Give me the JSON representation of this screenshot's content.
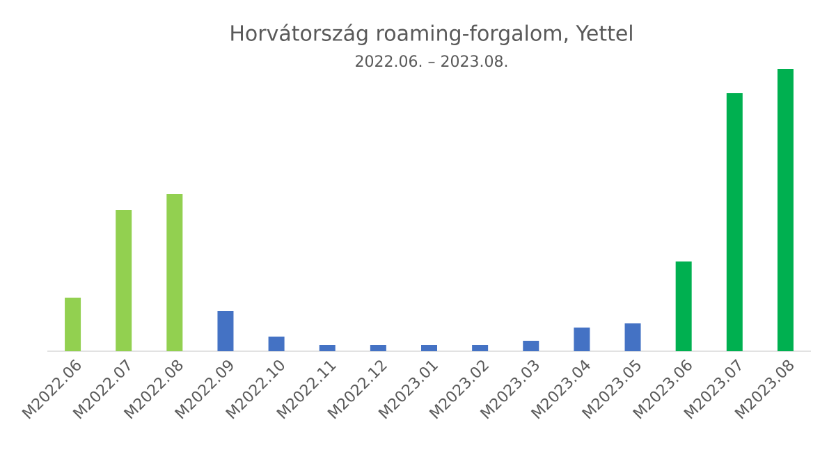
{
  "chart_data": {
    "type": "bar",
    "title": "Horvátország roaming-forgalom, Yettel",
    "subtitle": "2022.06. – 2023.08.",
    "categories": [
      "M2022.06",
      "M2022.07",
      "M2022.08",
      "M2022.09",
      "M2022.10",
      "M2022.11",
      "M2022.12",
      "M2023.01",
      "M2023.02",
      "M2023.03",
      "M2023.04",
      "M2023.05",
      "M2023.06",
      "M2023.07",
      "M2023.08"
    ],
    "values": [
      77,
      203,
      226,
      58,
      21,
      9,
      9,
      9,
      9,
      15,
      34,
      40,
      129,
      371,
      406
    ],
    "colors": [
      "#92d050",
      "#92d050",
      "#92d050",
      "#4472c4",
      "#4472c4",
      "#4472c4",
      "#4472c4",
      "#4472c4",
      "#4472c4",
      "#4472c4",
      "#4472c4",
      "#4472c4",
      "#00b050",
      "#00b050",
      "#00b050"
    ],
    "ylim": [
      0,
      410
    ]
  }
}
